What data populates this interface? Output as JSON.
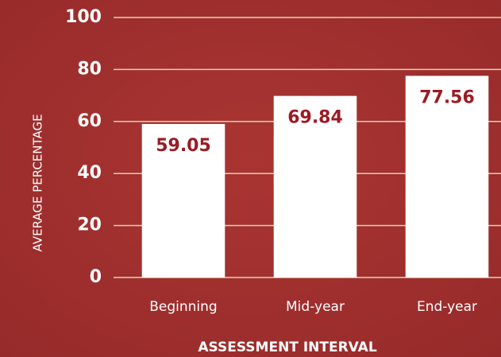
{
  "chart_data": {
    "type": "bar",
    "categories": [
      "Beginning",
      "Mid-year",
      "End-year"
    ],
    "values": [
      59.05,
      69.84,
      77.56
    ],
    "color": "#ffffff",
    "label_color": "#9b1b24",
    "background": "#a3312f",
    "xlabel": "ASSESSMENT INTERVAL",
    "ylabel": "AVERAGE PERCENTAGE",
    "ylim": [
      0,
      100
    ],
    "yticks": [
      0,
      20,
      40,
      60,
      80,
      100
    ],
    "grid": true
  }
}
